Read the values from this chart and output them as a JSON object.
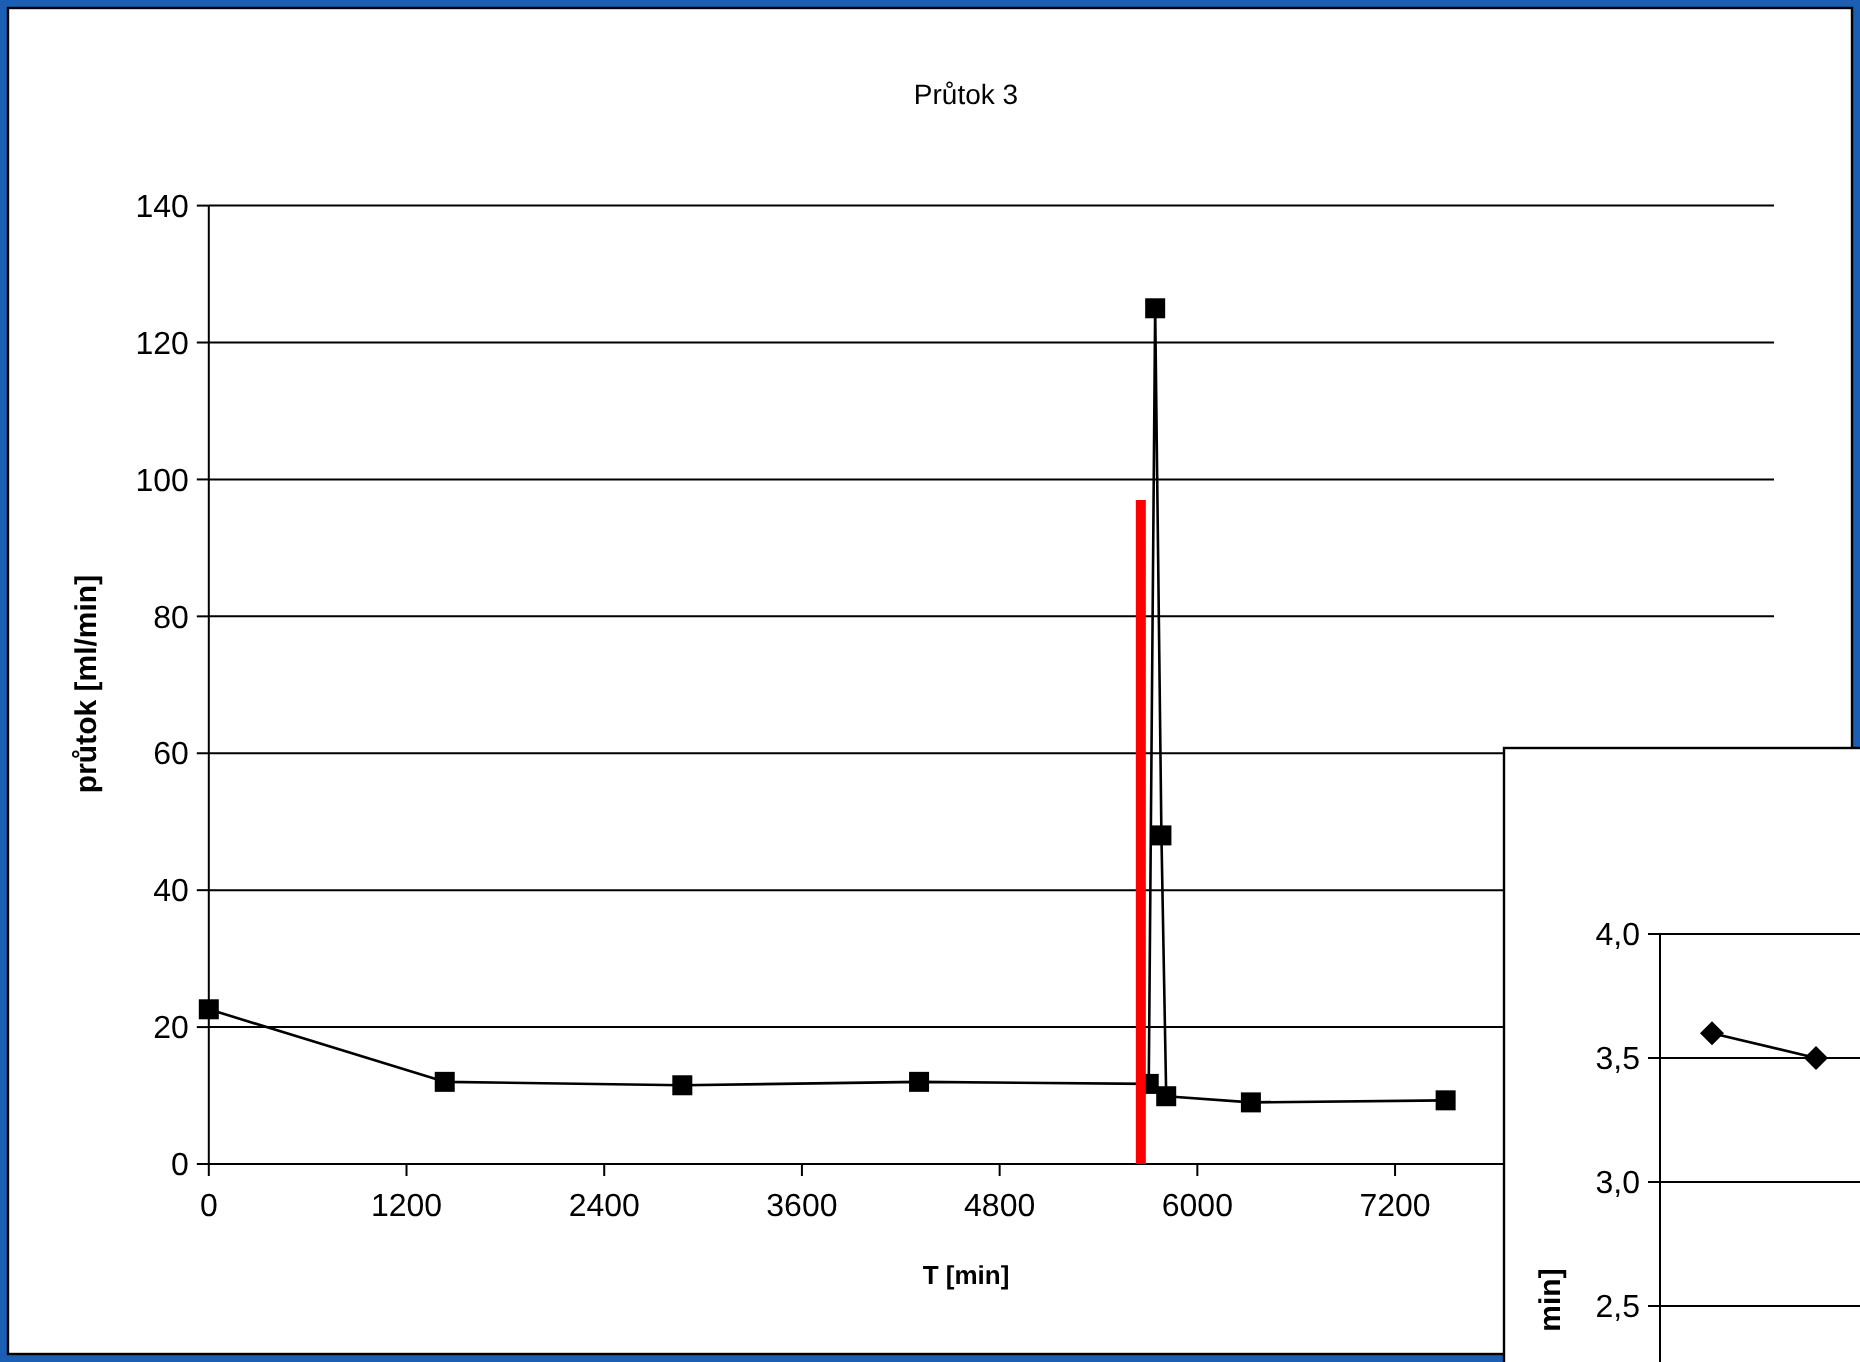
{
  "chart_data": [
    {
      "type": "line",
      "title": "Průtok 3",
      "xlabel": "T [min]",
      "ylabel": "průtok [ml/min]",
      "xlim": [
        0,
        9500
      ],
      "xticks": [
        0,
        1200,
        2400,
        3600,
        4800,
        6000,
        7200
      ],
      "ylim": [
        0,
        140
      ],
      "yticks": [
        0,
        20,
        40,
        60,
        80,
        100,
        120,
        140
      ],
      "grid": "y",
      "series": [
        {
          "color": "#000000",
          "marker": "square",
          "x": [
            0,
            1432,
            2874,
            4311,
            5705,
            5744,
            5782,
            5811,
            6325,
            7507
          ],
          "values": [
            22.6,
            12.0,
            11.5,
            12.0,
            11.7,
            125,
            48,
            9.9,
            9.0,
            9.3
          ]
        },
        {
          "color": "#ff0000",
          "marker": "none",
          "x": [
            5657,
            5657
          ],
          "values": [
            0,
            97
          ]
        }
      ]
    },
    {
      "type": "line",
      "ylabel": "min]",
      "categories": [
        null,
        null
      ],
      "ylim": [
        2.0,
        4.0
      ],
      "yticks": [
        {
          "value": 2.5,
          "label": "2,5"
        },
        {
          "value": 3.0,
          "label": "3,0"
        },
        {
          "value": 3.5,
          "label": "3,5"
        },
        {
          "value": 4.0,
          "label": "4,0"
        }
      ],
      "tick_labels": "y",
      "grid": "y",
      "series": [
        {
          "color": "#000000",
          "marker": "diamond",
          "values": [
            3.6,
            3.5
          ]
        }
      ]
    }
  ]
}
